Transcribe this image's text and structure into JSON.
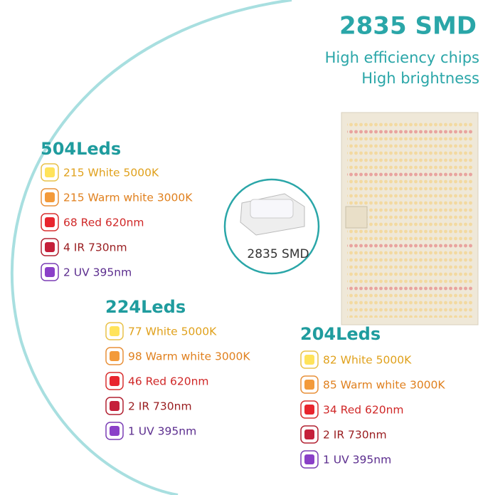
{
  "header": {
    "title": "2835 SMD",
    "subtitle": [
      "High efficiency chips",
      "High brightness"
    ]
  },
  "chip_label": "2835 SMD",
  "groups": [
    {
      "title": "504Leds",
      "items": [
        "215 White 5000K",
        "215 Warm white 3000K",
        "68 Red 620nm",
        "4 IR 730nm",
        "2 UV 395nm"
      ]
    },
    {
      "title": "224Leds",
      "items": [
        "77 White 5000K",
        "98 Warm white 3000K",
        "46 Red 620nm",
        "2 IR 730nm",
        "1 UV 395nm"
      ]
    },
    {
      "title": "204Leds",
      "items": [
        "82 White 5000K",
        "85 Warm white 3000K",
        "34 Red 620nm",
        "2 IR 730nm",
        "1 UV 395nm"
      ]
    }
  ]
}
